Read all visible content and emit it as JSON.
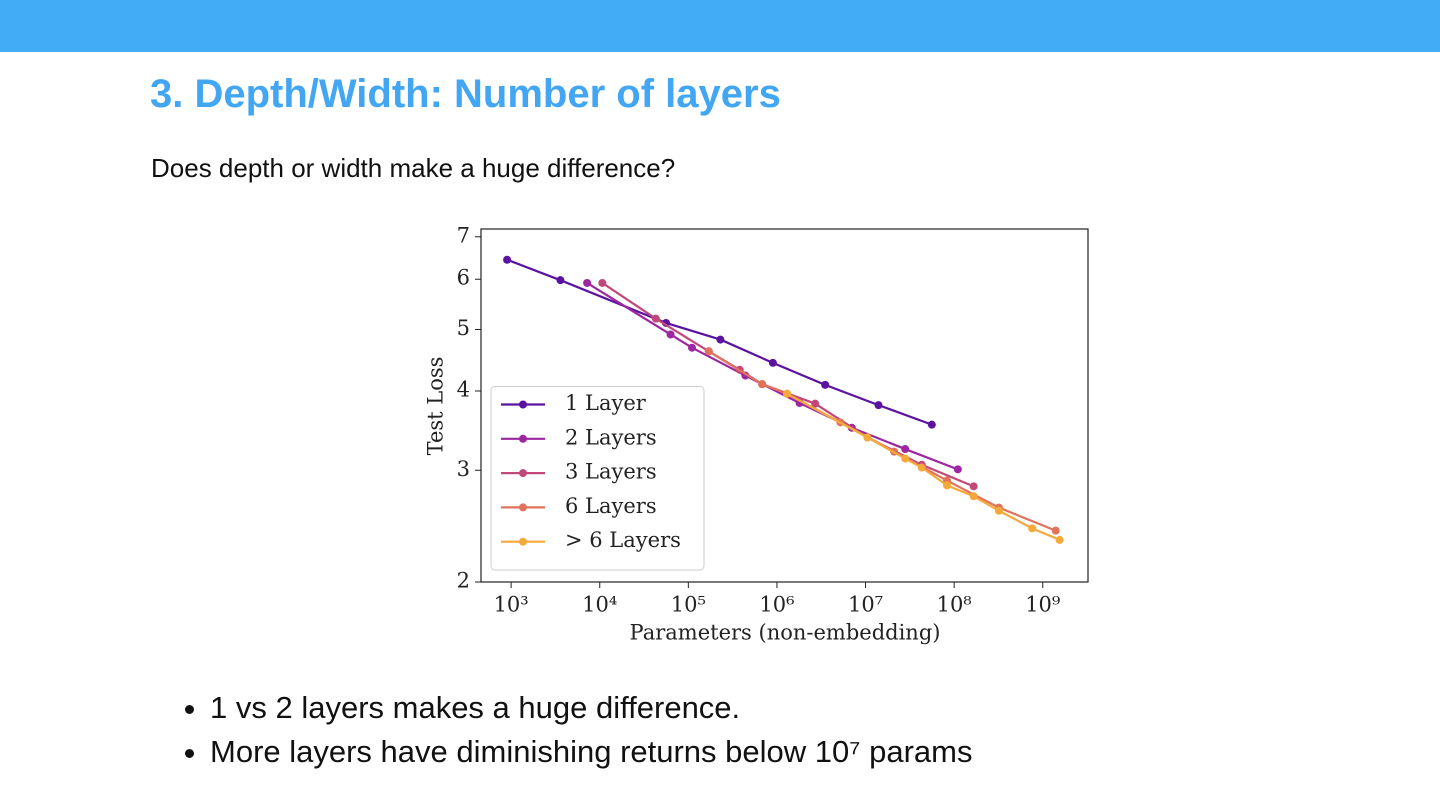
{
  "slide": {
    "title": "3. Depth/Width: Number of layers",
    "subtitle": "Does depth or width make a huge difference?",
    "bullets": [
      "1 vs 2 layers makes a huge difference.",
      "More layers have diminishing returns below 10⁷ params"
    ]
  },
  "chart_data": {
    "type": "line",
    "x_label": "Parameters (non-embedding)",
    "y_label": "Test Loss",
    "log_x": true,
    "log_y": true,
    "legend": "lower left",
    "xlim": [
      457,
      3240000000
    ],
    "ylim": [
      2,
      7.2
    ],
    "xticks": [
      {
        "value": 1000,
        "label": "10³"
      },
      {
        "value": 10000,
        "label": "10⁴"
      },
      {
        "value": 100000,
        "label": "10⁵"
      },
      {
        "value": 1000000,
        "label": "10⁶"
      },
      {
        "value": 10000000,
        "label": "10⁷"
      },
      {
        "value": 100000000,
        "label": "10⁸"
      },
      {
        "value": 1000000000,
        "label": "10⁹"
      }
    ],
    "yticks": [
      2,
      3,
      4,
      5,
      6,
      7
    ],
    "series": [
      {
        "name": "1 Layer",
        "color": "#5b12a0",
        "x": [
          900,
          3600,
          56000,
          230000,
          900000,
          3500000,
          14000000,
          56000000
        ],
        "values": [
          6.44,
          5.98,
          5.12,
          4.82,
          4.43,
          4.09,
          3.8,
          3.54
        ]
      },
      {
        "name": "2 Layers",
        "color": "#9c27a0",
        "x": [
          7200,
          63000,
          110000,
          440000,
          1800000,
          7000000,
          28000000,
          110000000
        ],
        "values": [
          5.92,
          4.91,
          4.68,
          4.23,
          3.83,
          3.5,
          3.24,
          3.01
        ]
      },
      {
        "name": "3 Layers",
        "color": "#c3487a",
        "x": [
          10700,
          43000,
          170000,
          380000,
          680000,
          2700000,
          10500000,
          43000000,
          166000000
        ],
        "values": [
          5.92,
          5.2,
          4.62,
          4.32,
          4.1,
          3.82,
          3.38,
          3.06,
          2.83
        ]
      },
      {
        "name": "6 Layers",
        "color": "#e0735a",
        "x": [
          170000,
          680000,
          1300000,
          5200000,
          21000000,
          83000000,
          320000000,
          1400000000
        ],
        "values": [
          4.62,
          4.1,
          3.96,
          3.57,
          3.21,
          2.89,
          2.62,
          2.41
        ]
      },
      {
        "name": "> 6 Layers",
        "color": "#f5a93a",
        "x": [
          1300000,
          10500000,
          28000000,
          43000000,
          83000000,
          166000000,
          320000000,
          760000000,
          1550000000
        ],
        "values": [
          3.96,
          3.38,
          3.13,
          3.03,
          2.84,
          2.73,
          2.59,
          2.43,
          2.33
        ]
      }
    ]
  }
}
